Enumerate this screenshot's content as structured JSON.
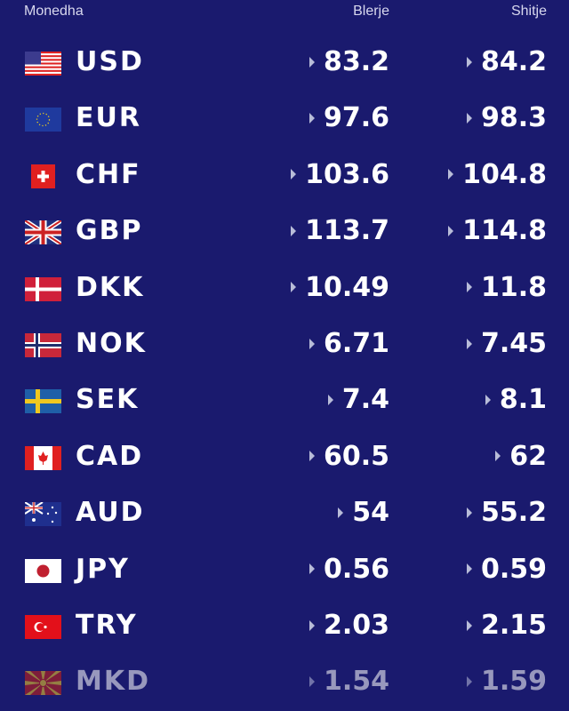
{
  "header": {
    "currency": "Monedha",
    "buy": "Blerje",
    "sell": "Shitje"
  },
  "colors": {
    "background": "#1a1a6e",
    "text": "#ffffff",
    "arrow": "#b8bcd8"
  },
  "rows": [
    {
      "code": "USD",
      "flag": "us-flag",
      "buy": "83.2",
      "sell": "84.2"
    },
    {
      "code": "EUR",
      "flag": "eu-flag",
      "buy": "97.6",
      "sell": "98.3"
    },
    {
      "code": "CHF",
      "flag": "ch-flag",
      "buy": "103.6",
      "sell": "104.8"
    },
    {
      "code": "GBP",
      "flag": "gb-flag",
      "buy": "113.7",
      "sell": "114.8"
    },
    {
      "code": "DKK",
      "flag": "dk-flag",
      "buy": "10.49",
      "sell": "11.8"
    },
    {
      "code": "NOK",
      "flag": "no-flag",
      "buy": "6.71",
      "sell": "7.45"
    },
    {
      "code": "SEK",
      "flag": "se-flag",
      "buy": "7.4",
      "sell": "8.1"
    },
    {
      "code": "CAD",
      "flag": "ca-flag",
      "buy": "60.5",
      "sell": "62"
    },
    {
      "code": "AUD",
      "flag": "au-flag",
      "buy": "54",
      "sell": "55.2"
    },
    {
      "code": "JPY",
      "flag": "jp-flag",
      "buy": "0.56",
      "sell": "0.59"
    },
    {
      "code": "TRY",
      "flag": "tr-flag",
      "buy": "2.03",
      "sell": "2.15"
    },
    {
      "code": "MKD",
      "flag": "mk-flag",
      "buy": "1.54",
      "sell": "1.59"
    }
  ]
}
